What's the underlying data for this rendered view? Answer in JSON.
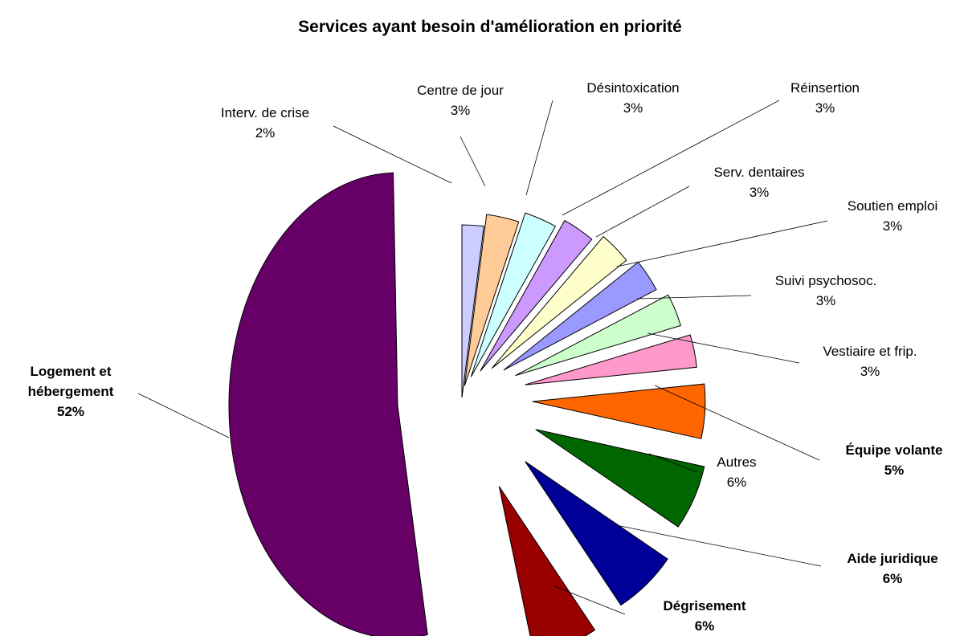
{
  "chart_data": {
    "type": "pie",
    "title": "Services ayant besoin d'amélioration en priorité",
    "slices": [
      {
        "label": "Logement et hébergement",
        "label_lines": [
          "Logement et",
          "hébergement"
        ],
        "pct": "52%",
        "value": 52,
        "color": "#660066",
        "bold": true
      },
      {
        "label": "Interv. de crise",
        "label_lines": [
          "Interv. de crise"
        ],
        "pct": "2%",
        "value": 2,
        "color": "#ccccff",
        "bold": false
      },
      {
        "label": "Centre de jour",
        "label_lines": [
          "Centre de jour"
        ],
        "pct": "3%",
        "value": 3,
        "color": "#ffcc99",
        "bold": false
      },
      {
        "label": "Désintoxication",
        "label_lines": [
          "Désintoxication"
        ],
        "pct": "3%",
        "value": 3,
        "color": "#ccffff",
        "bold": false
      },
      {
        "label": "Réinsertion",
        "label_lines": [
          "Réinsertion"
        ],
        "pct": "3%",
        "value": 3,
        "color": "#cc99ff",
        "bold": false
      },
      {
        "label": "Serv. dentaires",
        "label_lines": [
          "Serv. dentaires"
        ],
        "pct": "3%",
        "value": 3,
        "color": "#ffffcc",
        "bold": false
      },
      {
        "label": "Soutien emploi",
        "label_lines": [
          "Soutien emploi"
        ],
        "pct": "3%",
        "value": 3,
        "color": "#9999ff",
        "bold": false
      },
      {
        "label": "Suivi psychosoc.",
        "label_lines": [
          "Suivi psychosoc."
        ],
        "pct": "3%",
        "value": 3,
        "color": "#ccffcc",
        "bold": false
      },
      {
        "label": "Vestiaire et frip.",
        "label_lines": [
          "Vestiaire et frip."
        ],
        "pct": "3%",
        "value": 3,
        "color": "#ff99cc",
        "bold": false
      },
      {
        "label": "Équipe volante",
        "label_lines": [
          "Équipe volante"
        ],
        "pct": "5%",
        "value": 5,
        "color": "#ff6600",
        "bold": true
      },
      {
        "label": "Autres",
        "label_lines": [
          "Autres"
        ],
        "pct": "6%",
        "value": 6,
        "color": "#006600",
        "bold": false
      },
      {
        "label": "Aide juridique",
        "label_lines": [
          "Aide juridique"
        ],
        "pct": "6%",
        "value": 6,
        "color": "#000099",
        "bold": true
      },
      {
        "label": "Dégrisement",
        "label_lines": [
          "Dégrisement"
        ],
        "pct": "6%",
        "value": 6,
        "color": "#990000",
        "bold": true
      }
    ]
  }
}
